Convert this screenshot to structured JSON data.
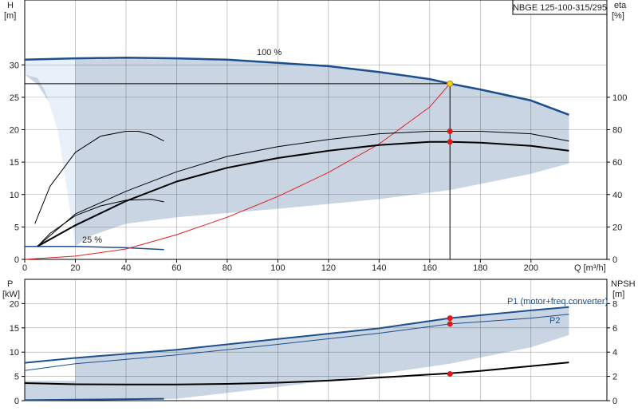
{
  "pump_model": "NBGE 125-100-315/295",
  "chart_data": [
    {
      "type": "line",
      "panel": "head-efficiency",
      "y_label_symbol": "H",
      "y_label_unit": "[m]",
      "y2_label_symbol": "eta",
      "y2_label_unit": "[%]",
      "x_label": "Q [m³/h]",
      "xlim": [
        0,
        230
      ],
      "ylim": [
        0,
        40
      ],
      "y2lim": [
        0,
        160
      ],
      "x_ticks": [
        0,
        20,
        40,
        60,
        80,
        100,
        120,
        140,
        160,
        180,
        200
      ],
      "y_ticks": [
        0,
        5,
        10,
        15,
        20,
        25,
        30
      ],
      "y2_ticks": [
        0,
        20,
        40,
        60,
        80,
        100
      ],
      "grid": true,
      "annotations": {
        "max_speed": "100 %",
        "min_speed": "25 %"
      },
      "operating_point": {
        "q": 168,
        "h": 27.1,
        "eta_upper": 79,
        "eta_lower": 72.5
      },
      "series": [
        {
          "role": "area-fill",
          "color": "#c9d5e2",
          "x": [
            0,
            20,
            40,
            80,
            120,
            160,
            168,
            200,
            215,
            215,
            200,
            168,
            140,
            100,
            60,
            40,
            25,
            20,
            18,
            15,
            10,
            5,
            0
          ],
          "y": [
            30.8,
            31,
            31.1,
            30.9,
            29.8,
            27.8,
            27.1,
            24.5,
            22.3,
            14.8,
            13.2,
            10.7,
            9.3,
            7.8,
            6.5,
            5.5,
            3.5,
            2,
            10,
            18.5,
            24,
            27,
            28.5
          ]
        },
        {
          "role": "low-region",
          "color": "#e8f1fa",
          "x": [
            0,
            20,
            20,
            17,
            13,
            8,
            5,
            0
          ],
          "y": [
            30.8,
            31,
            2,
            10,
            20,
            26,
            28,
            28.5
          ]
        },
        {
          "role": "head-max",
          "color": "#1c4f8c",
          "width": 2.5,
          "x": [
            0,
            20,
            40,
            60,
            80,
            100,
            120,
            140,
            160,
            168,
            180,
            200,
            215
          ],
          "y": [
            30.8,
            31,
            31.1,
            31,
            30.8,
            30.3,
            29.8,
            28.9,
            27.8,
            27.1,
            26.2,
            24.5,
            22.3
          ]
        },
        {
          "role": "head-min",
          "color": "#1c4f8c",
          "width": 1.5,
          "x": [
            0,
            20,
            40,
            55
          ],
          "y": [
            2,
            2,
            1.8,
            1.5
          ]
        },
        {
          "role": "system-curve",
          "color": "#e02020",
          "width": 1,
          "x": [
            0,
            20,
            40,
            60,
            80,
            100,
            120,
            140,
            160,
            168
          ],
          "y": [
            0,
            0.5,
            1.6,
            3.8,
            6.5,
            9.7,
            13.4,
            17.8,
            23.5,
            27.1
          ]
        },
        {
          "role": "eta-min-speed",
          "color": "#000",
          "width": 1,
          "axis": "y2",
          "x": [
            4,
            10,
            20,
            30,
            40,
            45,
            50,
            55
          ],
          "y": [
            22,
            45,
            66,
            76,
            79,
            79,
            77,
            73
          ]
        },
        {
          "role": "eta-low-speed",
          "color": "#000",
          "width": 1,
          "axis": "y2",
          "x": [
            5,
            10,
            20,
            30,
            40,
            50,
            55
          ],
          "y": [
            8,
            16,
            27,
            33,
            36.5,
            37,
            35.5
          ]
        },
        {
          "role": "eta-upper",
          "color": "#000",
          "width": 1,
          "axis": "y2",
          "x": [
            5,
            20,
            40,
            60,
            80,
            100,
            120,
            140,
            160,
            168,
            180,
            200,
            215
          ],
          "y": [
            8,
            28,
            42,
            54,
            63.5,
            69.5,
            74,
            77.5,
            79,
            79,
            79,
            77.5,
            73
          ]
        },
        {
          "role": "eta-lower",
          "color": "#000",
          "width": 2,
          "axis": "y2",
          "x": [
            5,
            20,
            40,
            60,
            80,
            100,
            120,
            140,
            160,
            168,
            180,
            200,
            215
          ],
          "y": [
            8,
            21,
            36,
            48,
            56.5,
            62.5,
            67,
            70.5,
            72.5,
            72.5,
            72,
            70,
            67
          ]
        }
      ]
    },
    {
      "type": "line",
      "panel": "power-npsh",
      "y_label_symbol": "P",
      "y_label_unit": "[kW]",
      "y2_label_symbol": "NPSH",
      "y2_label_unit": "[m]",
      "xlim": [
        0,
        230
      ],
      "ylim": [
        0,
        25
      ],
      "y2lim": [
        0,
        10
      ],
      "y_ticks": [
        0,
        5,
        10,
        15,
        20
      ],
      "y2_ticks": [
        0,
        2,
        4,
        6,
        8
      ],
      "grid": true,
      "legend": {
        "p1": "P1 (motor+freq.converter)",
        "p2": "P2"
      },
      "operating_point": {
        "q": 168,
        "p1": 17.0,
        "p2": 15.8,
        "npsh": 2.2
      },
      "series": [
        {
          "role": "power-area",
          "color": "#c9d5e2",
          "x": [
            20,
            60,
            100,
            140,
            168,
            200,
            215,
            215,
            200,
            168,
            140,
            100,
            60,
            40,
            20,
            0,
            0,
            20
          ],
          "y": [
            8.8,
            10.5,
            12.7,
            14.9,
            17.0,
            18.6,
            19.3,
            13.5,
            11,
            7.6,
            5.5,
            2.8,
            0.4,
            0.2,
            0.1,
            0.2,
            4.1,
            4.1
          ]
        },
        {
          "role": "p1",
          "color": "#1c4f8c",
          "width": 2,
          "x": [
            0,
            20,
            60,
            100,
            140,
            168,
            200,
            215
          ],
          "y": [
            7.8,
            8.8,
            10.5,
            12.7,
            14.9,
            17.0,
            18.6,
            19.3
          ]
        },
        {
          "role": "p2",
          "color": "#1c4f8c",
          "width": 1,
          "x": [
            0,
            20,
            60,
            100,
            140,
            168,
            200,
            215
          ],
          "y": [
            6.2,
            7.6,
            9.4,
            11.6,
            13.9,
            15.8,
            17.0,
            17.8
          ]
        },
        {
          "role": "p-min",
          "color": "#1c4f8c",
          "width": 2,
          "x": [
            0,
            20,
            55
          ],
          "y": [
            0.1,
            0.2,
            0.4
          ]
        },
        {
          "role": "npsh",
          "color": "#000",
          "width": 2,
          "axis": "y2",
          "x": [
            0,
            20,
            40,
            60,
            80,
            100,
            120,
            140,
            160,
            168,
            180,
            200,
            215
          ],
          "y": [
            1.45,
            1.35,
            1.33,
            1.33,
            1.38,
            1.48,
            1.65,
            1.9,
            2.15,
            2.25,
            2.45,
            2.85,
            3.15
          ]
        }
      ]
    }
  ]
}
